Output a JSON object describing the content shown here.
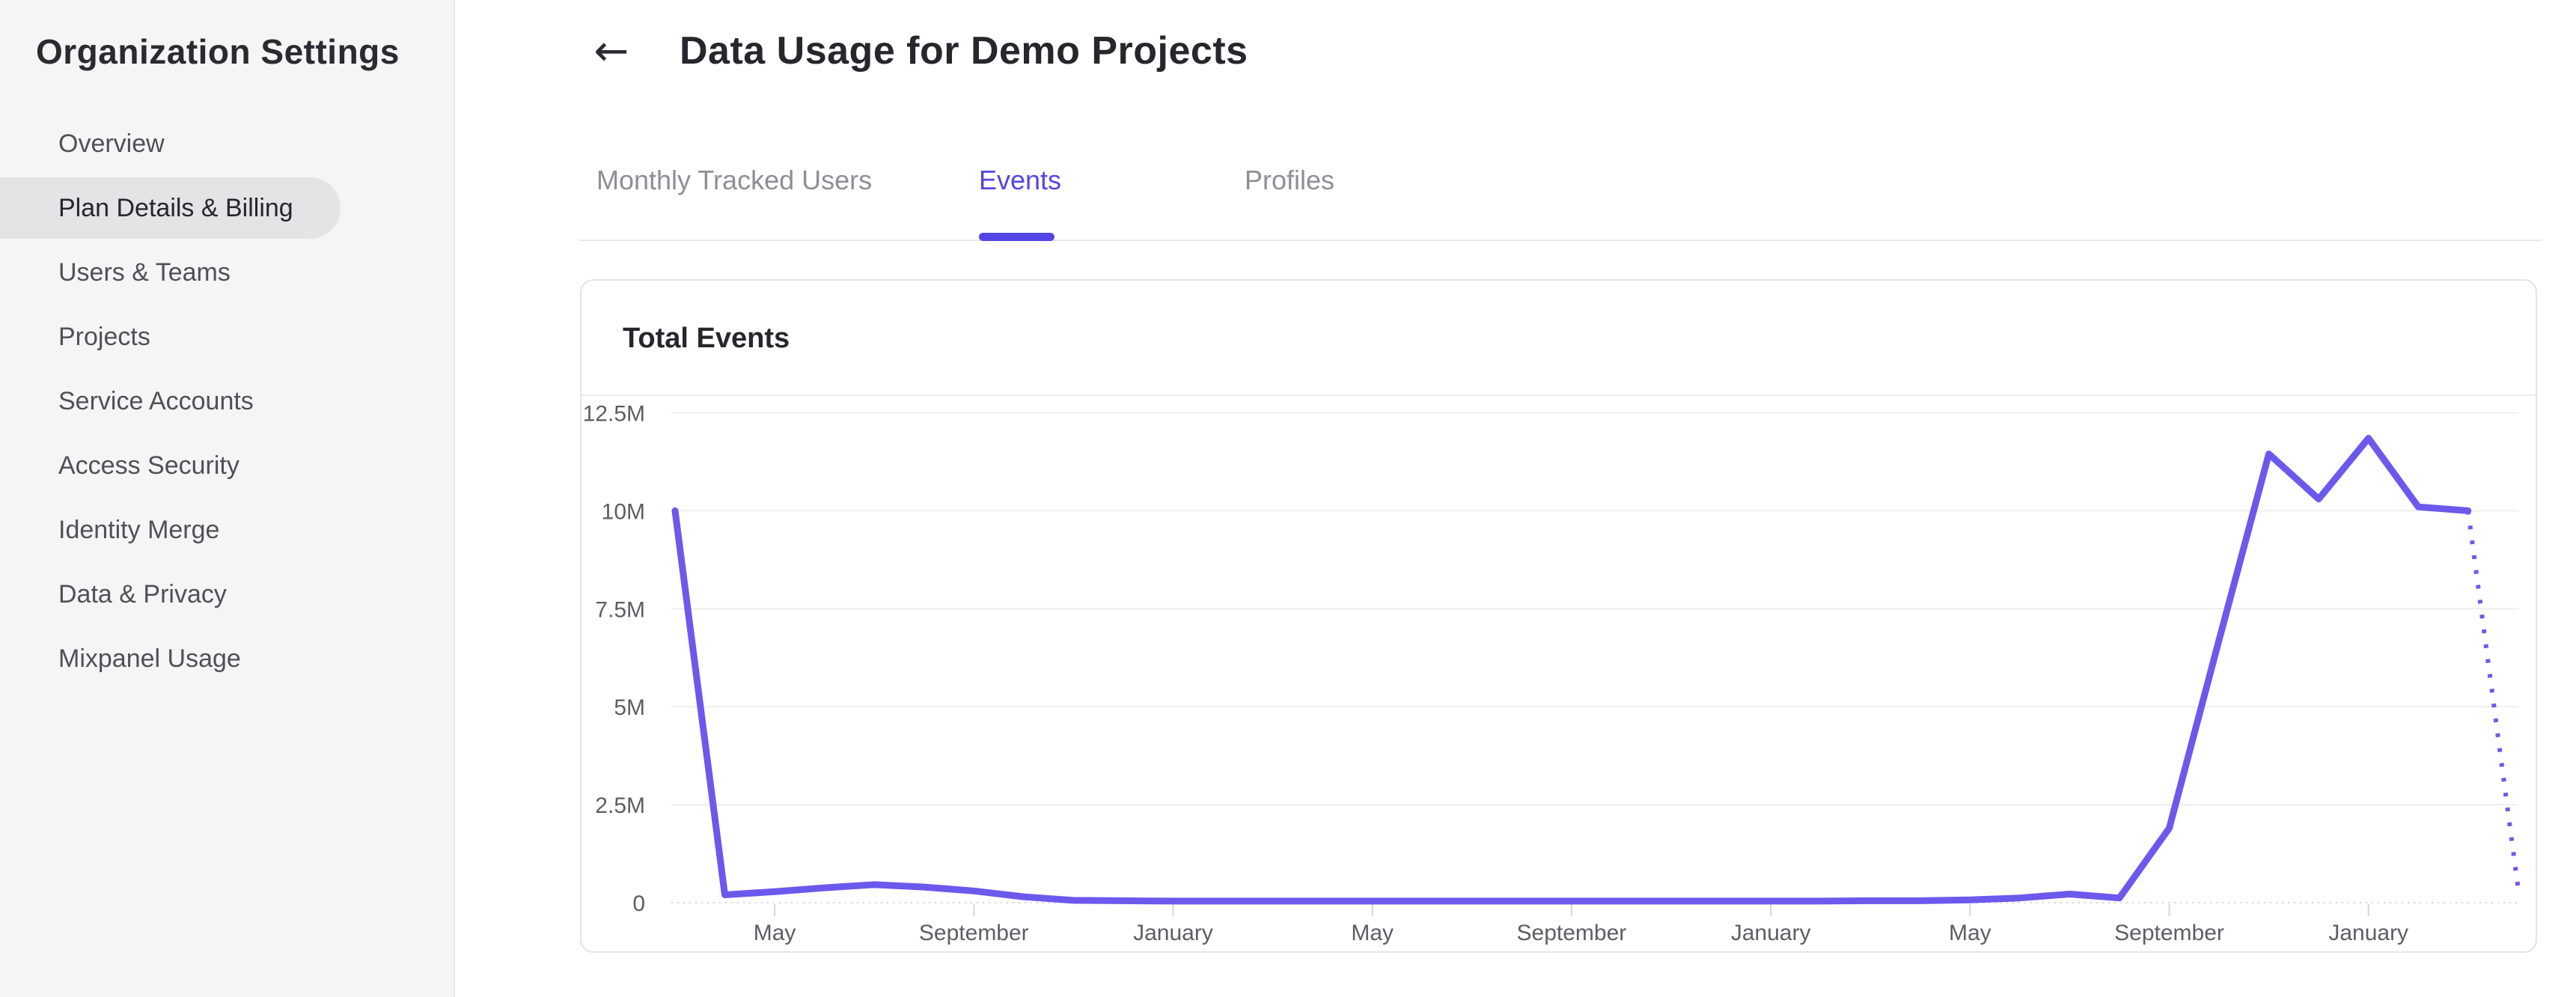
{
  "sidebar": {
    "title": "Organization Settings",
    "items": [
      {
        "label": "Overview",
        "active": false
      },
      {
        "label": "Plan Details & Billing",
        "active": true
      },
      {
        "label": "Users & Teams",
        "active": false
      },
      {
        "label": "Projects",
        "active": false
      },
      {
        "label": "Service Accounts",
        "active": false
      },
      {
        "label": "Access Security",
        "active": false
      },
      {
        "label": "Identity Merge",
        "active": false
      },
      {
        "label": "Data & Privacy",
        "active": false
      },
      {
        "label": "Mixpanel Usage",
        "active": false
      }
    ]
  },
  "header": {
    "back_glyph": "←",
    "title": "Data Usage for Demo Projects"
  },
  "tabs": [
    {
      "label": "Monthly Tracked Users",
      "active": false
    },
    {
      "label": "Events",
      "active": true
    },
    {
      "label": "Profiles",
      "active": false
    }
  ],
  "card": {
    "title": "Total Events"
  },
  "colors": {
    "accent_purple": "#5446e4",
    "line_purple": "#6c59ec",
    "sidebar_bg": "#f5f5f6",
    "selected_pill": "#e4e4e6"
  },
  "chart_data": {
    "type": "line",
    "title": "Total Events",
    "series_name": "Total Events",
    "unit": "events (millions)",
    "grid": true,
    "legend": false,
    "line_color": "#6c59ec",
    "y_axis": {
      "tick_labels": [
        "12.5M",
        "10M",
        "7.5M",
        "5M",
        "2.5M",
        "0"
      ],
      "tick_values_millions": [
        12.5,
        10,
        7.5,
        5,
        2.5,
        0
      ],
      "range_millions": [
        0,
        12.5
      ]
    },
    "x_axis": {
      "tick_labels": [
        "May",
        "September",
        "January",
        "May",
        "September",
        "January",
        "May",
        "September",
        "January"
      ],
      "tick_month_indices": [
        2,
        6,
        10,
        14,
        18,
        22,
        26,
        30,
        34
      ],
      "month_span": [
        0,
        37
      ]
    },
    "solid_points_millions": [
      [
        0,
        10.0
      ],
      [
        1,
        0.2
      ],
      [
        2,
        0.28
      ],
      [
        3,
        0.38
      ],
      [
        4,
        0.46
      ],
      [
        5,
        0.4
      ],
      [
        6,
        0.3
      ],
      [
        7,
        0.15
      ],
      [
        8,
        0.06
      ],
      [
        9,
        0.05
      ],
      [
        10,
        0.04
      ],
      [
        11,
        0.04
      ],
      [
        12,
        0.04
      ],
      [
        13,
        0.04
      ],
      [
        14,
        0.04
      ],
      [
        15,
        0.04
      ],
      [
        16,
        0.04
      ],
      [
        17,
        0.04
      ],
      [
        18,
        0.04
      ],
      [
        19,
        0.04
      ],
      [
        20,
        0.04
      ],
      [
        21,
        0.04
      ],
      [
        22,
        0.04
      ],
      [
        23,
        0.04
      ],
      [
        24,
        0.05
      ],
      [
        25,
        0.05
      ],
      [
        26,
        0.07
      ],
      [
        27,
        0.12
      ],
      [
        28,
        0.22
      ],
      [
        29,
        0.12
      ],
      [
        30,
        1.9
      ],
      [
        31,
        6.7
      ],
      [
        32,
        11.45
      ],
      [
        33,
        10.3
      ],
      [
        34,
        11.85
      ],
      [
        35,
        10.1
      ],
      [
        36,
        10.0
      ]
    ],
    "dotted_points_millions": [
      [
        36,
        10.0
      ],
      [
        37,
        0.42
      ]
    ]
  }
}
